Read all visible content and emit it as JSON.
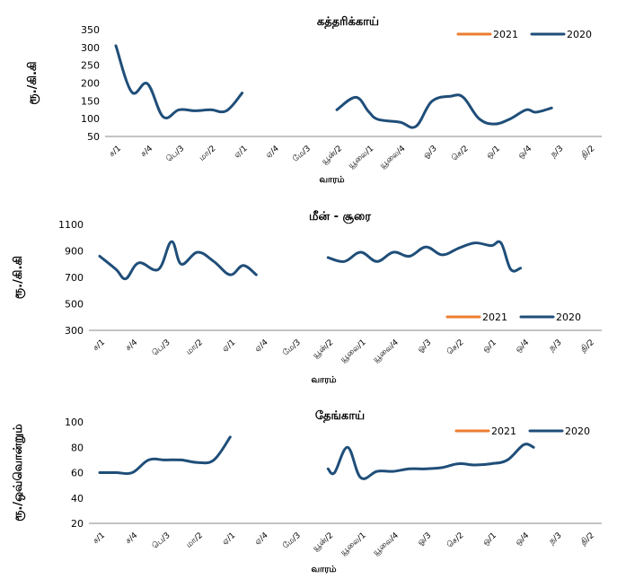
{
  "colors": {
    "series_2021": "#ED7D31",
    "series_2020": "#1F4E79",
    "axis": "#888888"
  },
  "chart_data": [
    {
      "type": "line",
      "title": "கத்தரிக்காய்",
      "ylabel": "ரூ./கி.கி",
      "xlabel": "வாரம்",
      "ylim": [
        50,
        350
      ],
      "yticks": [
        50,
        100,
        150,
        200,
        250,
        300,
        350
      ],
      "grid": false,
      "legend_position": "top-right",
      "categories": [
        "ச/1",
        "ச/4",
        "பெ/3",
        "மா/2",
        "ஏ/1",
        "ஏ/4",
        "மே/3",
        "யூன்/2",
        "யூலை/1",
        "யூலை/4",
        "ஓ/3",
        "செ/2",
        "ஒ/1",
        "ஒ/4",
        "ந/3",
        "தி/2"
      ],
      "series": [
        {
          "name": "2021",
          "segments": []
        },
        {
          "name": "2020",
          "segments": [
            [
              [
                0,
                305
              ],
              [
                0.5,
                175
              ],
              [
                1,
                198
              ],
              [
                1.5,
                105
              ],
              [
                2,
                125
              ],
              [
                2.5,
                122
              ],
              [
                3,
                125
              ],
              [
                3.5,
                122
              ],
              [
                4,
                172
              ]
            ],
            [
              [
                7,
                125
              ],
              [
                7.6,
                160
              ],
              [
                8,
                120
              ],
              [
                8.3,
                98
              ],
              [
                9,
                90
              ],
              [
                9.5,
                78
              ],
              [
                10,
                148
              ],
              [
                10.6,
                163
              ],
              [
                11,
                160
              ],
              [
                11.5,
                100
              ],
              [
                12,
                85
              ],
              [
                12.5,
                100
              ],
              [
                13,
                125
              ],
              [
                13.3,
                118
              ],
              [
                13.8,
                130
              ]
            ]
          ]
        }
      ]
    },
    {
      "type": "line",
      "title": "மீன் - சூரை",
      "ylabel": "ரூ./கி.கி",
      "xlabel": "வாரம்",
      "ylim": [
        300,
        1100
      ],
      "yticks": [
        300,
        500,
        700,
        900,
        1100
      ],
      "grid": false,
      "legend_position": "bottom-right",
      "categories": [
        "ச/1",
        "ச/4",
        "பெ/3",
        "மா/2",
        "ஏ/1",
        "ஏ/4",
        "மே/3",
        "யூன்/2",
        "யூலை/1",
        "யூலை/4",
        "ஓ/3",
        "செ/2",
        "ஒ/1",
        "ஒ/4",
        "ந/3",
        "தி/2"
      ],
      "series": [
        {
          "name": "2021",
          "segments": []
        },
        {
          "name": "2020",
          "segments": [
            [
              [
                0,
                860
              ],
              [
                0.5,
                760
              ],
              [
                0.8,
                690
              ],
              [
                1.2,
                810
              ],
              [
                1.8,
                760
              ],
              [
                2.2,
                970
              ],
              [
                2.5,
                800
              ],
              [
                3,
                890
              ],
              [
                3.5,
                820
              ],
              [
                4,
                720
              ],
              [
                4.4,
                790
              ],
              [
                4.8,
                720
              ]
            ],
            [
              [
                7,
                850
              ],
              [
                7.5,
                820
              ],
              [
                8,
                890
              ],
              [
                8.5,
                820
              ],
              [
                9,
                890
              ],
              [
                9.5,
                860
              ],
              [
                10,
                930
              ],
              [
                10.5,
                870
              ],
              [
                11,
                920
              ],
              [
                11.5,
                960
              ],
              [
                12,
                940
              ],
              [
                12.3,
                960
              ],
              [
                12.6,
                760
              ],
              [
                12.9,
                770
              ]
            ]
          ]
        }
      ]
    },
    {
      "type": "line",
      "title": "தேங்காய்",
      "ylabel": "ரூ./ஒவ்வொன்றும்",
      "xlabel": "வாரம்",
      "ylim": [
        20,
        100
      ],
      "yticks": [
        20,
        40,
        60,
        80,
        100
      ],
      "grid": false,
      "legend_position": "top-right",
      "categories": [
        "ச/1",
        "ச/4",
        "பெ/3",
        "மா/2",
        "ஏ/1",
        "ஏ/4",
        "மே/3",
        "யூன்/2",
        "யூலை/1",
        "யூலை/4",
        "ஓ/3",
        "செ/2",
        "ஒ/1",
        "ஒ/4",
        "ந/3",
        "தி/2"
      ],
      "series": [
        {
          "name": "2021",
          "segments": []
        },
        {
          "name": "2020",
          "segments": [
            [
              [
                0,
                60
              ],
              [
                0.5,
                60
              ],
              [
                1,
                60
              ],
              [
                1.5,
                70
              ],
              [
                2,
                70
              ],
              [
                2.5,
                70
              ],
              [
                3,
                68
              ],
              [
                3.5,
                70
              ],
              [
                4,
                88
              ]
            ],
            [
              [
                7,
                63
              ],
              [
                7.2,
                60
              ],
              [
                7.6,
                80
              ],
              [
                8,
                56
              ],
              [
                8.5,
                61
              ],
              [
                9,
                61
              ],
              [
                9.5,
                63
              ],
              [
                10,
                63
              ],
              [
                10.5,
                64
              ],
              [
                11,
                67
              ],
              [
                11.5,
                66
              ],
              [
                12,
                67
              ],
              [
                12.5,
                70
              ],
              [
                13,
                82
              ],
              [
                13.3,
                80
              ]
            ]
          ]
        }
      ]
    }
  ]
}
